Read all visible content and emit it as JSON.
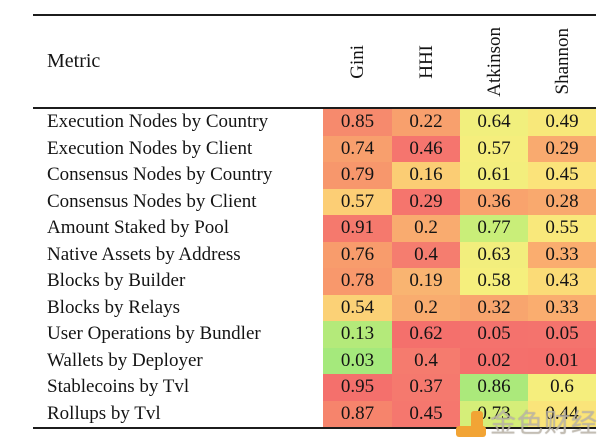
{
  "table": {
    "header": {
      "metric_label": "Metric",
      "columns": [
        "Gini",
        "HHI",
        "Atkinson",
        "Shannon"
      ]
    },
    "rows": [
      {
        "metric": "Execution Nodes by Country",
        "values": [
          "0.85",
          "0.22",
          "0.64",
          "0.49"
        ],
        "colors": [
          "#f68a6d",
          "#f8a06d",
          "#f1ef7d",
          "#f8e87a"
        ]
      },
      {
        "metric": "Execution Nodes by Client",
        "values": [
          "0.74",
          "0.46",
          "0.57",
          "0.29"
        ],
        "colors": [
          "#f89f6d",
          "#f5756e",
          "#f5ee7d",
          "#f9aa6f"
        ]
      },
      {
        "metric": "Consensus Nodes by Country",
        "values": [
          "0.79",
          "0.16",
          "0.61",
          "0.45"
        ],
        "colors": [
          "#f7976c",
          "#fbcd74",
          "#f3ee7d",
          "#fbe37a"
        ]
      },
      {
        "metric": "Consensus Nodes by Client",
        "values": [
          "0.57",
          "0.29",
          "0.36",
          "0.28"
        ],
        "colors": [
          "#fcce75",
          "#f5756d",
          "#f9a36d",
          "#f9a96e"
        ]
      },
      {
        "metric": "Amount Staked by Pool",
        "values": [
          "0.91",
          "0.2",
          "0.77",
          "0.55"
        ],
        "colors": [
          "#f5796d",
          "#f9ab6f",
          "#c9ee79",
          "#f9e87b"
        ]
      },
      {
        "metric": "Native Assets by Address",
        "values": [
          "0.76",
          "0.4",
          "0.63",
          "0.33"
        ],
        "colors": [
          "#f89c6c",
          "#f57d6f",
          "#f2ee7d",
          "#faad6f"
        ]
      },
      {
        "metric": "Blocks by Builder",
        "values": [
          "0.78",
          "0.19",
          "0.58",
          "0.43"
        ],
        "colors": [
          "#f8986c",
          "#f9b471",
          "#f5ef7d",
          "#fbdb77"
        ]
      },
      {
        "metric": "Blocks by Relays",
        "values": [
          "0.54",
          "0.2",
          "0.32",
          "0.33"
        ],
        "colors": [
          "#fbd176",
          "#f9ac6f",
          "#f8a56e",
          "#faad6f"
        ]
      },
      {
        "metric": "User Operations by Bundler",
        "values": [
          "0.13",
          "0.62",
          "0.05",
          "0.05"
        ],
        "colors": [
          "#b4ea7a",
          "#f4706c",
          "#f4726d",
          "#f4736d"
        ]
      },
      {
        "metric": "Wallets by Deployer",
        "values": [
          "0.03",
          "0.4",
          "0.02",
          "0.01"
        ],
        "colors": [
          "#a5e97c",
          "#f57b6e",
          "#f4706c",
          "#f46f6b"
        ]
      },
      {
        "metric": "Stablecoins by Tvl",
        "values": [
          "0.95",
          "0.37",
          "0.86",
          "0.6"
        ],
        "colors": [
          "#f4706c",
          "#f5796e",
          "#abe97b",
          "#f5ee7d"
        ]
      },
      {
        "metric": "Rollups by Tvl",
        "values": [
          "0.87",
          "0.45",
          "0.73",
          "0.44"
        ],
        "colors": [
          "#f6846c",
          "#f5776e",
          "#d5ee79",
          "#fae47a"
        ]
      }
    ]
  },
  "watermark": {
    "text": "金色财经",
    "logo_color": "#f2a435"
  },
  "chart_data": {
    "type": "heatmap",
    "title": "",
    "row_label_header": "Metric",
    "columns": [
      "Gini",
      "HHI",
      "Atkinson",
      "Shannon"
    ],
    "rows": [
      "Execution Nodes by Country",
      "Execution Nodes by Client",
      "Consensus Nodes by Country",
      "Consensus Nodes by Client",
      "Amount Staked by Pool",
      "Native Assets by Address",
      "Blocks by Builder",
      "Blocks by Relays",
      "User Operations by Bundler",
      "Wallets by Deployer",
      "Stablecoins by Tvl",
      "Rollups by Tvl"
    ],
    "series": [
      {
        "name": "Gini",
        "values": [
          0.85,
          0.74,
          0.79,
          0.57,
          0.91,
          0.76,
          0.78,
          0.54,
          0.13,
          0.03,
          0.95,
          0.87
        ]
      },
      {
        "name": "HHI",
        "values": [
          0.22,
          0.46,
          0.16,
          0.29,
          0.2,
          0.4,
          0.19,
          0.2,
          0.62,
          0.4,
          0.37,
          0.45
        ]
      },
      {
        "name": "Atkinson",
        "values": [
          0.64,
          0.57,
          0.61,
          0.36,
          0.77,
          0.63,
          0.58,
          0.32,
          0.05,
          0.02,
          0.86,
          0.73
        ]
      },
      {
        "name": "Shannon",
        "values": [
          0.49,
          0.29,
          0.45,
          0.28,
          0.55,
          0.33,
          0.43,
          0.33,
          0.05,
          0.01,
          0.6,
          0.44
        ]
      }
    ],
    "value_range": [
      0,
      1
    ],
    "colormap": "red-yellow-green heatmap, red = concentrated, green = distributed"
  }
}
